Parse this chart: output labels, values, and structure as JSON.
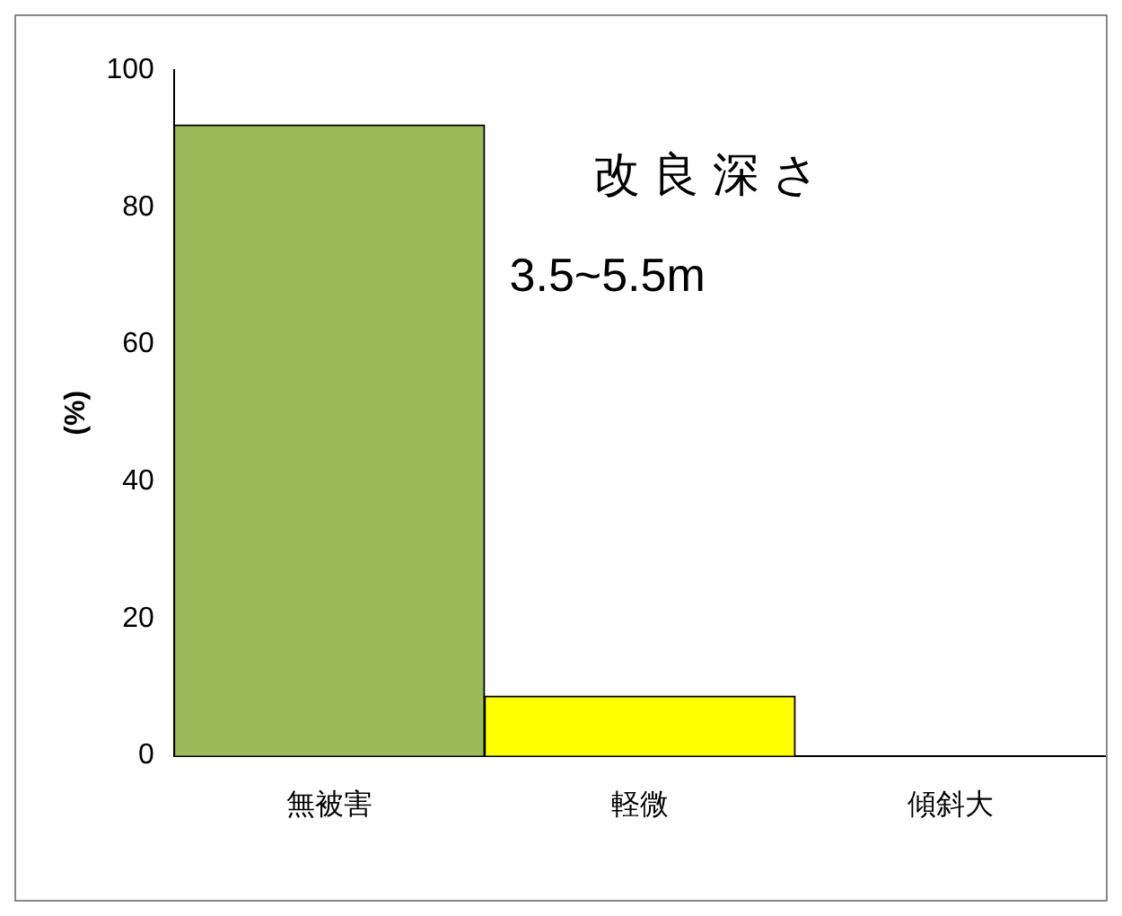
{
  "chart_data": {
    "type": "bar",
    "categories": [
      "無被害",
      "軽微",
      "傾斜大"
    ],
    "values": [
      92,
      8.7,
      0
    ],
    "colors": [
      "#9bbb59",
      "#ffff00",
      "#9bbb59"
    ],
    "ylabel": "(%)",
    "ylim": [
      0,
      100
    ],
    "yticks": [
      0,
      20,
      40,
      60,
      80,
      100
    ],
    "grid": false,
    "legend": false,
    "annotations": [
      "改 良 深 さ",
      "3.5~5.5m"
    ]
  }
}
